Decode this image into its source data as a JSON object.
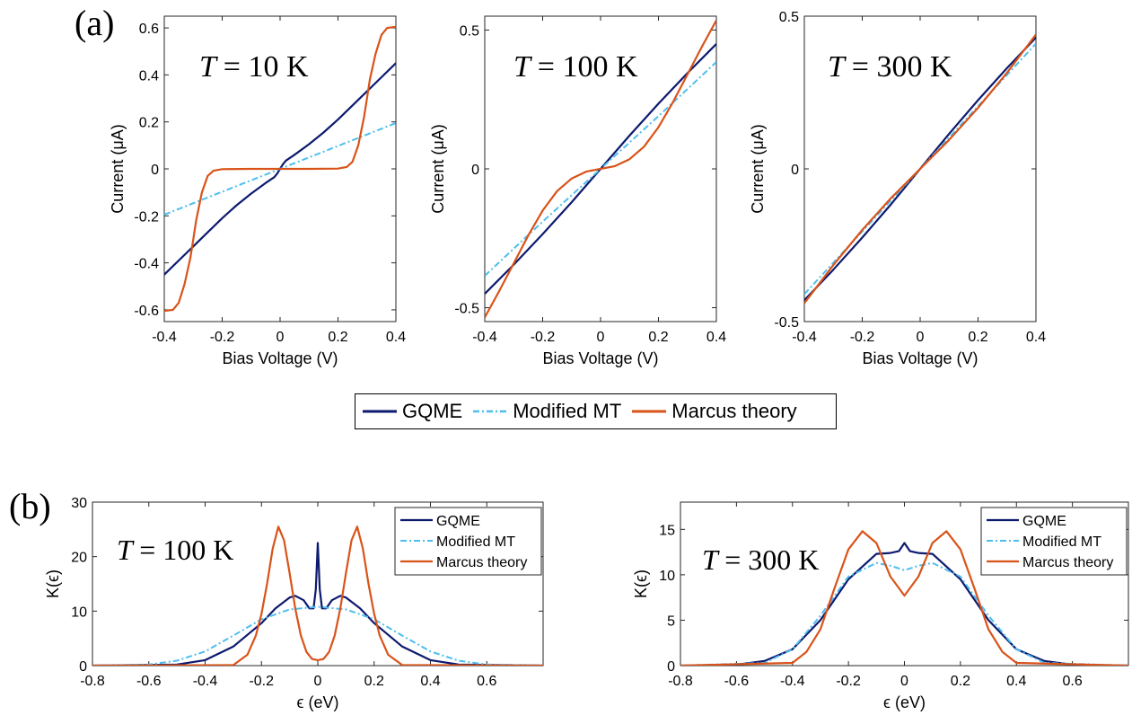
{
  "panel_labels": [
    "(a)",
    "(b)"
  ],
  "colors": {
    "gqme": "#0d1a6e",
    "modified_mt": "#4dbeee",
    "marcus": "#d95319"
  },
  "legend_a": [
    "GQME",
    "Modified MT",
    "Marcus theory"
  ],
  "chart_data": [
    {
      "type": "line",
      "panel": "a",
      "annotation": "T = 10 K",
      "xlabel": "Bias Voltage (V)",
      "ylabel": "Current (μA)",
      "xlim": [
        -0.4,
        0.4
      ],
      "ylim": [
        -0.65,
        0.65
      ],
      "xticks": [
        "-0.4",
        "-0.2",
        "0",
        "0.2",
        "0.4"
      ],
      "yticks": [
        "-0.6",
        "-0.4",
        "-0.2",
        "0",
        "0.2",
        "0.4",
        "0.6"
      ],
      "grid": false,
      "series": [
        {
          "name": "GQME",
          "x": [
            -0.4,
            -0.35,
            -0.3,
            -0.25,
            -0.2,
            -0.15,
            -0.1,
            -0.05,
            -0.02,
            -0.01,
            0,
            0.01,
            0.02,
            0.05,
            0.1,
            0.15,
            0.2,
            0.25,
            0.3,
            0.35,
            0.4
          ],
          "y": [
            -0.45,
            -0.39,
            -0.33,
            -0.27,
            -0.21,
            -0.155,
            -0.105,
            -0.06,
            -0.035,
            -0.02,
            0,
            0.02,
            0.035,
            0.06,
            0.105,
            0.155,
            0.21,
            0.27,
            0.33,
            0.39,
            0.45
          ]
        },
        {
          "name": "Modified MT",
          "x": [
            -0.4,
            0.4
          ],
          "y": [
            -0.195,
            0.195
          ]
        },
        {
          "name": "Marcus theory",
          "x": [
            -0.4,
            -0.37,
            -0.35,
            -0.33,
            -0.31,
            -0.3,
            -0.29,
            -0.27,
            -0.25,
            -0.23,
            -0.2,
            -0.1,
            0,
            0.1,
            0.2,
            0.23,
            0.25,
            0.27,
            0.29,
            0.3,
            0.31,
            0.33,
            0.35,
            0.37,
            0.4
          ],
          "y": [
            -0.605,
            -0.6,
            -0.57,
            -0.49,
            -0.38,
            -0.3,
            -0.22,
            -0.1,
            -0.03,
            -0.008,
            -0.001,
            0,
            0,
            0,
            0.001,
            0.008,
            0.03,
            0.1,
            0.22,
            0.3,
            0.38,
            0.49,
            0.57,
            0.6,
            0.605
          ]
        }
      ]
    },
    {
      "type": "line",
      "panel": "a",
      "annotation": "T = 100 K",
      "xlabel": "Bias Voltage (V)",
      "ylabel": "Current (μA)",
      "xlim": [
        -0.4,
        0.4
      ],
      "ylim": [
        -0.55,
        0.55
      ],
      "xticks": [
        "-0.4",
        "-0.2",
        "0",
        "0.2",
        "0.4"
      ],
      "yticks": [
        "-0.5",
        "0",
        "0.5"
      ],
      "grid": false,
      "series": [
        {
          "name": "GQME",
          "x": [
            -0.4,
            -0.3,
            -0.2,
            -0.1,
            0,
            0.1,
            0.2,
            0.3,
            0.4
          ],
          "y": [
            -0.45,
            -0.345,
            -0.235,
            -0.12,
            0,
            0.12,
            0.235,
            0.345,
            0.45
          ]
        },
        {
          "name": "Modified MT",
          "x": [
            -0.4,
            -0.2,
            0,
            0.2,
            0.4
          ],
          "y": [
            -0.385,
            -0.19,
            0,
            0.19,
            0.385
          ]
        },
        {
          "name": "Marcus theory",
          "x": [
            -0.4,
            -0.35,
            -0.3,
            -0.25,
            -0.2,
            -0.15,
            -0.1,
            -0.05,
            0,
            0.05,
            0.1,
            0.15,
            0.2,
            0.25,
            0.3,
            0.35,
            0.4
          ],
          "y": [
            -0.535,
            -0.44,
            -0.34,
            -0.24,
            -0.15,
            -0.08,
            -0.035,
            -0.01,
            0,
            0.01,
            0.035,
            0.08,
            0.15,
            0.24,
            0.34,
            0.44,
            0.535
          ]
        }
      ]
    },
    {
      "type": "line",
      "panel": "a",
      "annotation": "T = 300 K",
      "xlabel": "Bias Voltage (V)",
      "ylabel": "Current (μA)",
      "xlim": [
        -0.4,
        0.4
      ],
      "ylim": [
        -0.5,
        0.5
      ],
      "xticks": [
        "-0.4",
        "-0.2",
        "0",
        "0.2",
        "0.4"
      ],
      "yticks": [
        "-0.5",
        "0",
        "0.5"
      ],
      "grid": false,
      "series": [
        {
          "name": "GQME",
          "x": [
            -0.4,
            -0.3,
            -0.2,
            -0.1,
            0,
            0.1,
            0.2,
            0.3,
            0.4
          ],
          "y": [
            -0.43,
            -0.33,
            -0.225,
            -0.115,
            0,
            0.115,
            0.225,
            0.33,
            0.43
          ]
        },
        {
          "name": "Modified MT",
          "x": [
            -0.4,
            -0.2,
            0,
            0.2,
            0.4
          ],
          "y": [
            -0.41,
            -0.205,
            0,
            0.205,
            0.41
          ]
        },
        {
          "name": "Marcus theory",
          "x": [
            -0.4,
            -0.3,
            -0.2,
            -0.1,
            0,
            0.1,
            0.2,
            0.3,
            0.4
          ],
          "y": [
            -0.44,
            -0.315,
            -0.2,
            -0.095,
            0,
            0.095,
            0.2,
            0.315,
            0.44
          ]
        }
      ]
    },
    {
      "type": "line",
      "panel": "b",
      "annotation": "T = 100 K",
      "xlabel": "ϵ (eV)",
      "ylabel": "K(ϵ)",
      "xlim": [
        -0.8,
        0.8
      ],
      "ylim": [
        0,
        30
      ],
      "xticks": [
        "-0.8",
        "-0.6",
        "-0.4",
        "-0.2",
        "0",
        "0.2",
        "0.4",
        "0.6"
      ],
      "yticks": [
        "0",
        "10",
        "20",
        "30"
      ],
      "legend": "top-right",
      "grid": false,
      "series": [
        {
          "name": "GQME",
          "x": [
            -0.8,
            -0.5,
            -0.4,
            -0.3,
            -0.2,
            -0.15,
            -0.1,
            -0.08,
            -0.05,
            -0.03,
            -0.015,
            -0.007,
            0,
            0.007,
            0.015,
            0.03,
            0.05,
            0.08,
            0.1,
            0.15,
            0.2,
            0.3,
            0.4,
            0.5,
            0.8
          ],
          "y": [
            0,
            0.2,
            1,
            3.5,
            7.8,
            10.5,
            12.5,
            12.8,
            12,
            10.5,
            10.5,
            14,
            22.5,
            14,
            10.5,
            10.5,
            12,
            12.8,
            12.5,
            10.5,
            7.8,
            3.5,
            1,
            0.2,
            0
          ]
        },
        {
          "name": "Modified MT",
          "x": [
            -0.8,
            -0.6,
            -0.5,
            -0.4,
            -0.3,
            -0.2,
            -0.1,
            0,
            0.1,
            0.2,
            0.3,
            0.4,
            0.5,
            0.6,
            0.8
          ],
          "y": [
            0,
            0.2,
            0.9,
            2.6,
            5.5,
            8.5,
            10.3,
            10.8,
            10.3,
            8.5,
            5.5,
            2.6,
            0.9,
            0.2,
            0
          ]
        },
        {
          "name": "Marcus theory",
          "x": [
            -0.8,
            -0.3,
            -0.25,
            -0.22,
            -0.2,
            -0.18,
            -0.16,
            -0.14,
            -0.12,
            -0.1,
            -0.08,
            -0.06,
            -0.04,
            -0.02,
            0,
            0.02,
            0.04,
            0.06,
            0.08,
            0.1,
            0.12,
            0.14,
            0.16,
            0.18,
            0.2,
            0.22,
            0.25,
            0.3,
            0.8
          ],
          "y": [
            0,
            0.1,
            2,
            5.5,
            9.5,
            15,
            21.5,
            25.5,
            23,
            17,
            10.5,
            5.5,
            2.5,
            1.2,
            1,
            1.2,
            2.5,
            5.5,
            10.5,
            17,
            23,
            25.5,
            21.5,
            15,
            9.5,
            5.5,
            2,
            0.1,
            0
          ]
        }
      ]
    },
    {
      "type": "line",
      "panel": "b",
      "annotation": "T = 300 K",
      "xlabel": "ϵ (eV)",
      "ylabel": "K(ϵ)",
      "xlim": [
        -0.8,
        0.8
      ],
      "ylim": [
        0,
        18
      ],
      "xticks": [
        "-0.8",
        "-0.6",
        "-0.4",
        "-0.2",
        "0",
        "0.2",
        "0.4",
        "0.6"
      ],
      "yticks": [
        "0",
        "5",
        "10",
        "15"
      ],
      "legend": "top-right",
      "grid": false,
      "series": [
        {
          "name": "GQME",
          "x": [
            -0.8,
            -0.6,
            -0.5,
            -0.4,
            -0.3,
            -0.2,
            -0.1,
            -0.05,
            -0.02,
            0,
            0.02,
            0.05,
            0.1,
            0.2,
            0.3,
            0.4,
            0.5,
            0.6,
            0.8
          ],
          "y": [
            0,
            0.1,
            0.5,
            1.8,
            5,
            9.5,
            12.3,
            12.4,
            12.6,
            13.5,
            12.6,
            12.4,
            12.3,
            9.5,
            5,
            1.8,
            0.5,
            0.1,
            0
          ]
        },
        {
          "name": "Modified MT",
          "x": [
            -0.8,
            -0.5,
            -0.4,
            -0.3,
            -0.2,
            -0.1,
            -0.05,
            0,
            0.05,
            0.1,
            0.2,
            0.3,
            0.4,
            0.5,
            0.8
          ],
          "y": [
            0,
            0.3,
            1.8,
            5.5,
            9.8,
            11.3,
            11,
            10.5,
            11,
            11.3,
            9.8,
            5.5,
            1.8,
            0.3,
            0
          ]
        },
        {
          "name": "Marcus theory",
          "x": [
            -0.8,
            -0.4,
            -0.35,
            -0.3,
            -0.25,
            -0.2,
            -0.15,
            -0.1,
            -0.05,
            0,
            0.05,
            0.1,
            0.15,
            0.2,
            0.25,
            0.3,
            0.35,
            0.4,
            0.8
          ],
          "y": [
            0,
            0.3,
            1.5,
            4,
            8.5,
            12.8,
            14.8,
            13.5,
            9.8,
            7.7,
            9.8,
            13.5,
            14.8,
            12.8,
            8.5,
            4,
            1.5,
            0.3,
            0
          ]
        }
      ]
    }
  ]
}
